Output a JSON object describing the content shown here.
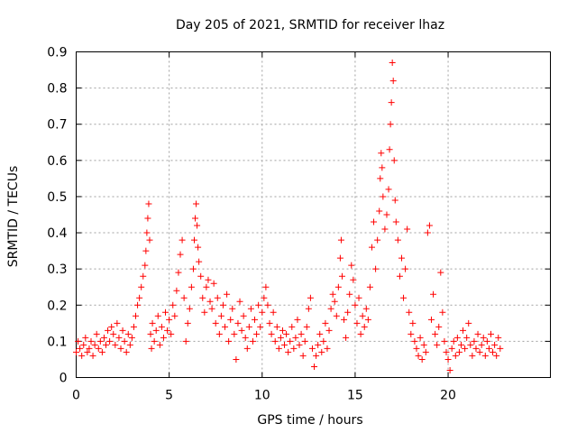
{
  "chart_data": {
    "type": "scatter",
    "title": "Day 205 of 2021, SRMTID for receiver lhaz",
    "xlabel": "GPS time / hours",
    "ylabel": "SRMTID / TECUs",
    "xlim": [
      0,
      25.5
    ],
    "ylim": [
      0,
      0.9
    ],
    "xticks": [
      0,
      5,
      10,
      15,
      20
    ],
    "yticks": [
      0,
      0.1,
      0.2,
      0.3,
      0.4,
      0.5,
      0.6,
      0.7,
      0.8,
      0.9
    ],
    "grid": true,
    "marker": "+",
    "color": "#ff0000",
    "series": [
      {
        "name": "SRMTID",
        "points": [
          [
            0.0,
            0.07
          ],
          [
            0.1,
            0.1
          ],
          [
            0.2,
            0.08
          ],
          [
            0.3,
            0.06
          ],
          [
            0.4,
            0.09
          ],
          [
            0.5,
            0.11
          ],
          [
            0.6,
            0.07
          ],
          [
            0.7,
            0.08
          ],
          [
            0.8,
            0.1
          ],
          [
            0.9,
            0.06
          ],
          [
            1.0,
            0.09
          ],
          [
            1.1,
            0.12
          ],
          [
            1.2,
            0.08
          ],
          [
            1.3,
            0.1
          ],
          [
            1.4,
            0.07
          ],
          [
            1.5,
            0.11
          ],
          [
            1.6,
            0.09
          ],
          [
            1.7,
            0.13
          ],
          [
            1.8,
            0.1
          ],
          [
            1.9,
            0.14
          ],
          [
            2.0,
            0.12
          ],
          [
            2.1,
            0.09
          ],
          [
            2.2,
            0.15
          ],
          [
            2.3,
            0.11
          ],
          [
            2.4,
            0.08
          ],
          [
            2.5,
            0.13
          ],
          [
            2.6,
            0.1
          ],
          [
            2.7,
            0.07
          ],
          [
            2.8,
            0.12
          ],
          [
            2.9,
            0.09
          ],
          [
            3.0,
            0.11
          ],
          [
            3.1,
            0.14
          ],
          [
            3.2,
            0.17
          ],
          [
            3.3,
            0.2
          ],
          [
            3.4,
            0.22
          ],
          [
            3.5,
            0.25
          ],
          [
            3.6,
            0.28
          ],
          [
            3.7,
            0.31
          ],
          [
            3.75,
            0.35
          ],
          [
            3.8,
            0.4
          ],
          [
            3.85,
            0.44
          ],
          [
            3.9,
            0.48
          ],
          [
            3.95,
            0.38
          ],
          [
            4.0,
            0.12
          ],
          [
            4.05,
            0.08
          ],
          [
            4.1,
            0.15
          ],
          [
            4.2,
            0.1
          ],
          [
            4.3,
            0.13
          ],
          [
            4.4,
            0.17
          ],
          [
            4.5,
            0.09
          ],
          [
            4.6,
            0.14
          ],
          [
            4.7,
            0.11
          ],
          [
            4.8,
            0.18
          ],
          [
            4.9,
            0.13
          ],
          [
            5.0,
            0.16
          ],
          [
            5.1,
            0.12
          ],
          [
            5.2,
            0.2
          ],
          [
            5.3,
            0.17
          ],
          [
            5.4,
            0.24
          ],
          [
            5.5,
            0.29
          ],
          [
            5.6,
            0.34
          ],
          [
            5.7,
            0.38
          ],
          [
            5.8,
            0.22
          ],
          [
            5.9,
            0.1
          ],
          [
            6.0,
            0.15
          ],
          [
            6.1,
            0.19
          ],
          [
            6.2,
            0.25
          ],
          [
            6.3,
            0.3
          ],
          [
            6.35,
            0.38
          ],
          [
            6.4,
            0.44
          ],
          [
            6.45,
            0.48
          ],
          [
            6.5,
            0.42
          ],
          [
            6.55,
            0.36
          ],
          [
            6.6,
            0.32
          ],
          [
            6.7,
            0.28
          ],
          [
            6.8,
            0.22
          ],
          [
            6.9,
            0.18
          ],
          [
            7.0,
            0.25
          ],
          [
            7.1,
            0.27
          ],
          [
            7.2,
            0.21
          ],
          [
            7.3,
            0.19
          ],
          [
            7.4,
            0.26
          ],
          [
            7.5,
            0.15
          ],
          [
            7.6,
            0.22
          ],
          [
            7.7,
            0.12
          ],
          [
            7.8,
            0.17
          ],
          [
            7.9,
            0.2
          ],
          [
            8.0,
            0.14
          ],
          [
            8.1,
            0.23
          ],
          [
            8.2,
            0.1
          ],
          [
            8.3,
            0.16
          ],
          [
            8.4,
            0.19
          ],
          [
            8.5,
            0.12
          ],
          [
            8.6,
            0.05
          ],
          [
            8.7,
            0.15
          ],
          [
            8.8,
            0.21
          ],
          [
            8.9,
            0.13
          ],
          [
            9.0,
            0.17
          ],
          [
            9.1,
            0.11
          ],
          [
            9.2,
            0.08
          ],
          [
            9.3,
            0.14
          ],
          [
            9.4,
            0.19
          ],
          [
            9.5,
            0.1
          ],
          [
            9.6,
            0.16
          ],
          [
            9.7,
            0.12
          ],
          [
            9.8,
            0.2
          ],
          [
            9.9,
            0.14
          ],
          [
            10.0,
            0.18
          ],
          [
            10.1,
            0.22
          ],
          [
            10.2,
            0.25
          ],
          [
            10.3,
            0.2
          ],
          [
            10.4,
            0.15
          ],
          [
            10.5,
            0.12
          ],
          [
            10.6,
            0.18
          ],
          [
            10.7,
            0.1
          ],
          [
            10.8,
            0.14
          ],
          [
            10.9,
            0.08
          ],
          [
            11.0,
            0.11
          ],
          [
            11.1,
            0.13
          ],
          [
            11.2,
            0.09
          ],
          [
            11.3,
            0.12
          ],
          [
            11.4,
            0.07
          ],
          [
            11.5,
            0.1
          ],
          [
            11.6,
            0.14
          ],
          [
            11.7,
            0.08
          ],
          [
            11.8,
            0.11
          ],
          [
            11.9,
            0.16
          ],
          [
            12.0,
            0.09
          ],
          [
            12.1,
            0.12
          ],
          [
            12.2,
            0.06
          ],
          [
            12.3,
            0.1
          ],
          [
            12.4,
            0.14
          ],
          [
            12.5,
            0.19
          ],
          [
            12.6,
            0.22
          ],
          [
            12.7,
            0.08
          ],
          [
            12.8,
            0.03
          ],
          [
            12.9,
            0.06
          ],
          [
            13.0,
            0.09
          ],
          [
            13.1,
            0.12
          ],
          [
            13.2,
            0.07
          ],
          [
            13.3,
            0.1
          ],
          [
            13.4,
            0.15
          ],
          [
            13.5,
            0.08
          ],
          [
            13.6,
            0.13
          ],
          [
            13.7,
            0.19
          ],
          [
            13.8,
            0.23
          ],
          [
            13.9,
            0.21
          ],
          [
            14.0,
            0.17
          ],
          [
            14.1,
            0.25
          ],
          [
            14.2,
            0.33
          ],
          [
            14.25,
            0.38
          ],
          [
            14.3,
            0.28
          ],
          [
            14.4,
            0.16
          ],
          [
            14.5,
            0.11
          ],
          [
            14.6,
            0.18
          ],
          [
            14.7,
            0.23
          ],
          [
            14.8,
            0.31
          ],
          [
            14.9,
            0.27
          ],
          [
            15.0,
            0.2
          ],
          [
            15.1,
            0.15
          ],
          [
            15.2,
            0.22
          ],
          [
            15.3,
            0.12
          ],
          [
            15.4,
            0.17
          ],
          [
            15.5,
            0.14
          ],
          [
            15.6,
            0.19
          ],
          [
            15.7,
            0.16
          ],
          [
            15.8,
            0.25
          ],
          [
            15.9,
            0.36
          ],
          [
            16.0,
            0.43
          ],
          [
            16.1,
            0.3
          ],
          [
            16.2,
            0.38
          ],
          [
            16.3,
            0.46
          ],
          [
            16.35,
            0.55
          ],
          [
            16.4,
            0.62
          ],
          [
            16.45,
            0.58
          ],
          [
            16.5,
            0.5
          ],
          [
            16.6,
            0.41
          ],
          [
            16.7,
            0.45
          ],
          [
            16.8,
            0.52
          ],
          [
            16.85,
            0.63
          ],
          [
            16.9,
            0.7
          ],
          [
            16.95,
            0.76
          ],
          [
            17.0,
            0.87
          ],
          [
            17.05,
            0.82
          ],
          [
            17.1,
            0.6
          ],
          [
            17.15,
            0.49
          ],
          [
            17.2,
            0.43
          ],
          [
            17.3,
            0.38
          ],
          [
            17.4,
            0.28
          ],
          [
            17.5,
            0.33
          ],
          [
            17.6,
            0.22
          ],
          [
            17.7,
            0.3
          ],
          [
            17.8,
            0.41
          ],
          [
            17.9,
            0.18
          ],
          [
            18.0,
            0.12
          ],
          [
            18.1,
            0.15
          ],
          [
            18.2,
            0.1
          ],
          [
            18.3,
            0.08
          ],
          [
            18.4,
            0.06
          ],
          [
            18.5,
            0.11
          ],
          [
            18.6,
            0.05
          ],
          [
            18.7,
            0.09
          ],
          [
            18.8,
            0.07
          ],
          [
            18.9,
            0.4
          ],
          [
            19.0,
            0.42
          ],
          [
            19.1,
            0.16
          ],
          [
            19.2,
            0.23
          ],
          [
            19.3,
            0.12
          ],
          [
            19.4,
            0.09
          ],
          [
            19.5,
            0.14
          ],
          [
            19.6,
            0.29
          ],
          [
            19.7,
            0.18
          ],
          [
            19.8,
            0.1
          ],
          [
            19.9,
            0.07
          ],
          [
            20.0,
            0.05
          ],
          [
            20.1,
            0.02
          ],
          [
            20.2,
            0.08
          ],
          [
            20.3,
            0.1
          ],
          [
            20.4,
            0.06
          ],
          [
            20.5,
            0.11
          ],
          [
            20.6,
            0.07
          ],
          [
            20.7,
            0.09
          ],
          [
            20.8,
            0.13
          ],
          [
            20.9,
            0.08
          ],
          [
            21.0,
            0.11
          ],
          [
            21.1,
            0.15
          ],
          [
            21.2,
            0.09
          ],
          [
            21.3,
            0.06
          ],
          [
            21.4,
            0.1
          ],
          [
            21.5,
            0.08
          ],
          [
            21.6,
            0.12
          ],
          [
            21.7,
            0.07
          ],
          [
            21.8,
            0.09
          ],
          [
            21.9,
            0.11
          ],
          [
            22.0,
            0.06
          ],
          [
            22.1,
            0.1
          ],
          [
            22.2,
            0.08
          ],
          [
            22.3,
            0.12
          ],
          [
            22.4,
            0.07
          ],
          [
            22.5,
            0.09
          ],
          [
            22.6,
            0.06
          ],
          [
            22.7,
            0.11
          ],
          [
            22.8,
            0.08
          ]
        ]
      }
    ]
  }
}
